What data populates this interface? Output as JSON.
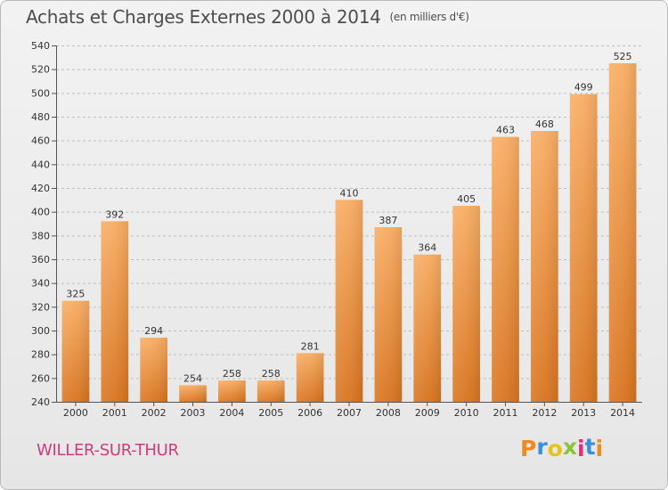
{
  "chart_data": {
    "type": "bar",
    "title": "Achats et Charges Externes 2000 à 2014",
    "subtitle": "(en milliers d'€)",
    "categories": [
      "2000",
      "2001",
      "2002",
      "2003",
      "2004",
      "2005",
      "2006",
      "2007",
      "2008",
      "2009",
      "2010",
      "2011",
      "2012",
      "2013",
      "2014"
    ],
    "values": [
      325,
      392,
      294,
      254,
      258,
      258,
      281,
      410,
      387,
      364,
      405,
      463,
      468,
      499,
      525
    ],
    "ylim": [
      240,
      540
    ],
    "yticks": [
      240,
      260,
      280,
      300,
      320,
      340,
      360,
      380,
      400,
      420,
      440,
      460,
      480,
      500,
      520,
      540
    ],
    "xlabel": "",
    "ylabel": "",
    "grid": "horizontal dashed",
    "bar_color": "#f0913a",
    "bar_color_light": "#f8ad63",
    "bar_color_dark": "#d8741f"
  },
  "footer": {
    "commune": "WILLER-SUR-THUR",
    "logo_letters": [
      "P",
      "r",
      "o",
      "x",
      "i",
      "t",
      "i"
    ],
    "logo_colors": [
      "#f08a1c",
      "#3a8fd8",
      "#e8c21a",
      "#8ac43a",
      "#e0307a",
      "#3a8fd8",
      "#f08a1c"
    ]
  }
}
